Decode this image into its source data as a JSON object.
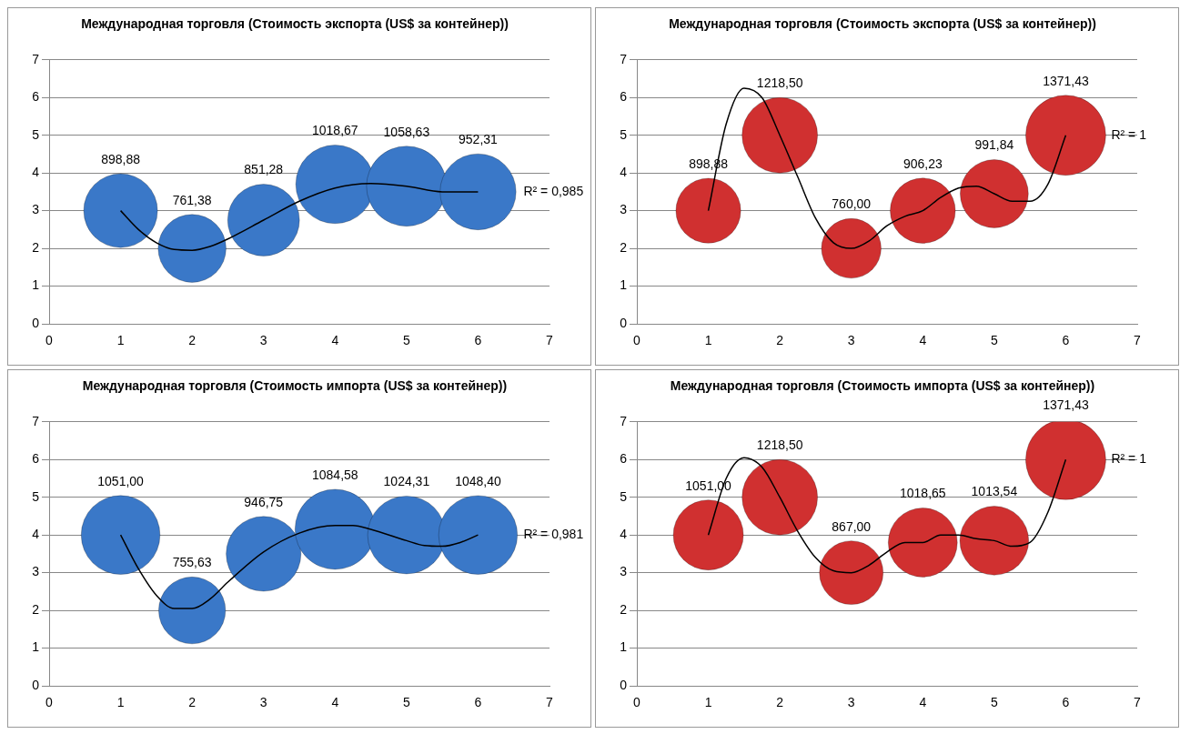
{
  "chart_data": [
    {
      "type": "bubble",
      "title": "Международная торговля (Стоимость экспорта (US$ за контейнер))",
      "x": [
        1,
        2,
        3,
        4,
        5,
        6
      ],
      "xlim": [
        0,
        7
      ],
      "xticks": [
        0,
        1,
        2,
        3,
        4,
        5,
        6,
        7
      ],
      "ylim": [
        0,
        7
      ],
      "yticks": [
        0,
        1,
        2,
        3,
        4,
        5,
        6,
        7
      ],
      "grid": "y",
      "legend": false,
      "series": [
        {
          "color": "#3a78c8",
          "values": [
            3,
            2,
            2.75,
            3.7,
            3.65,
            3.5
          ],
          "sizes": [
            0.849,
            0.719,
            0.804,
            0.962,
            1,
            0.9
          ]
        },
        {
          "type": "line",
          "color": "#000000",
          "marker": "none",
          "x": [
            1,
            1.25,
            1.5,
            1.75,
            2,
            2.25,
            2.5,
            3,
            3.5,
            4,
            4.5,
            5,
            5.5,
            6
          ],
          "values": [
            3,
            2.5,
            2.15,
            1.97,
            1.95,
            2.05,
            2.25,
            2.75,
            3.25,
            3.6,
            3.72,
            3.65,
            3.5,
            3.5
          ]
        }
      ],
      "annotations": [
        "R² = 0,985",
        "898,88",
        "761,38",
        "851,28",
        "1018,67",
        "1058,63",
        "952,31"
      ]
    },
    {
      "type": "bubble",
      "title": "Международная торговля (Стоимость экспорта (US$ за контейнер))",
      "x": [
        1,
        2,
        3,
        4,
        5,
        6
      ],
      "xlim": [
        0,
        7
      ],
      "xticks": [
        0,
        1,
        2,
        3,
        4,
        5,
        6,
        7
      ],
      "ylim": [
        0,
        7
      ],
      "yticks": [
        0,
        1,
        2,
        3,
        4,
        5,
        6,
        7
      ],
      "grid": "y",
      "legend": false,
      "series": [
        {
          "color": "#d03030",
          "values": [
            3,
            5,
            2,
            3,
            3.45,
            5
          ],
          "sizes": [
            0.655,
            0.888,
            0.554,
            0.661,
            0.723,
            1
          ]
        },
        {
          "type": "line",
          "color": "#000000",
          "marker": "none",
          "x": [
            1,
            1.25,
            1.5,
            1.75,
            2,
            2.25,
            2.5,
            2.75,
            3,
            3.25,
            3.5,
            3.75,
            4,
            4.25,
            4.5,
            4.75,
            5,
            5.25,
            5.5,
            5.75,
            6
          ],
          "values": [
            3,
            5.3,
            6.25,
            6,
            5,
            3.9,
            2.8,
            2.15,
            2,
            2.2,
            2.6,
            2.85,
            3,
            3.35,
            3.6,
            3.65,
            3.45,
            3.25,
            3.25,
            3.7,
            5
          ]
        }
      ],
      "annotations": [
        "R² = 1",
        "898,88",
        "1218,50",
        "760,00",
        "906,23",
        "991,84",
        "1371,43"
      ]
    },
    {
      "type": "bubble",
      "title": "Международная торговля (Стоимость импорта (US$ за контейнер))",
      "x": [
        1,
        2,
        3,
        4,
        5,
        6
      ],
      "xlim": [
        0,
        7
      ],
      "xticks": [
        0,
        1,
        2,
        3,
        4,
        5,
        6,
        7
      ],
      "ylim": [
        0,
        7
      ],
      "yticks": [
        0,
        1,
        2,
        3,
        4,
        5,
        6,
        7
      ],
      "grid": "y",
      "legend": false,
      "series": [
        {
          "color": "#3a78c8",
          "values": [
            4,
            2,
            3.5,
            4.15,
            4,
            4
          ],
          "sizes": [
            0.969,
            0.697,
            0.873,
            1,
            0.944,
            0.967
          ]
        },
        {
          "type": "line",
          "color": "#000000",
          "marker": "none",
          "x": [
            1,
            1.25,
            1.5,
            1.75,
            2,
            2.25,
            2.5,
            3,
            3.5,
            4,
            4.25,
            4.5,
            5,
            5.25,
            5.5,
            5.75,
            6
          ],
          "values": [
            4,
            3.1,
            2.4,
            2.05,
            2.05,
            2.3,
            2.75,
            3.55,
            4.05,
            4.25,
            4.25,
            4.15,
            3.85,
            3.72,
            3.7,
            3.8,
            4
          ]
        }
      ],
      "annotations": [
        "R² = 0,981",
        "1051,00",
        "755,63",
        "946,75",
        "1084,58",
        "1024,31",
        "1048,40"
      ]
    },
    {
      "type": "bubble",
      "title": "Международная торговля (Стоимость импорта (US$ за контейнер))",
      "x": [
        1,
        2,
        3,
        4,
        5,
        6
      ],
      "xlim": [
        0,
        7
      ],
      "xticks": [
        0,
        1,
        2,
        3,
        4,
        5,
        6,
        7
      ],
      "ylim": [
        0,
        7
      ],
      "yticks": [
        0,
        1,
        2,
        3,
        4,
        5,
        6,
        7
      ],
      "grid": "y",
      "legend": false,
      "series": [
        {
          "color": "#d03030",
          "values": [
            4,
            5,
            3,
            3.8,
            3.85,
            6
          ],
          "sizes": [
            0.766,
            0.888,
            0.632,
            0.743,
            0.739,
            1
          ]
        },
        {
          "type": "line",
          "color": "#000000",
          "marker": "none",
          "x": [
            1,
            1.25,
            1.5,
            1.75,
            2,
            2.25,
            2.5,
            2.75,
            3,
            3.25,
            3.5,
            3.75,
            4,
            4.25,
            4.5,
            4.75,
            5,
            5.25,
            5.5,
            5.75,
            6
          ],
          "values": [
            4,
            5.5,
            6.05,
            5.8,
            5,
            4.1,
            3.4,
            3.05,
            3,
            3.2,
            3.55,
            3.8,
            3.8,
            4,
            4,
            3.9,
            3.85,
            3.7,
            3.8,
            4.6,
            6
          ]
        }
      ],
      "annotations": [
        "R² = 1",
        "1051,00",
        "1218,50",
        "867,00",
        "1018,65",
        "1013,54",
        "1371,43"
      ]
    }
  ]
}
